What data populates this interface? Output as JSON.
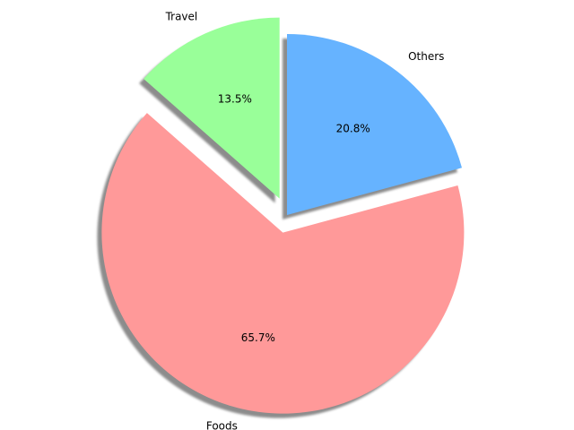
{
  "chart_data": {
    "type": "pie",
    "slices": [
      {
        "label": "Travel",
        "value": 13.5,
        "pct_label": "13.5%",
        "color": "#99ff99",
        "exploded": true
      },
      {
        "label": "Foods",
        "value": 65.7,
        "pct_label": "65.7%",
        "color": "#ff9999",
        "exploded": true
      },
      {
        "label": "Others",
        "value": 20.8,
        "pct_label": "20.8%",
        "color": "#66b3ff",
        "exploded": false
      }
    ],
    "start_angle_deg": 90,
    "direction": "counterclockwise",
    "shadow": true
  }
}
